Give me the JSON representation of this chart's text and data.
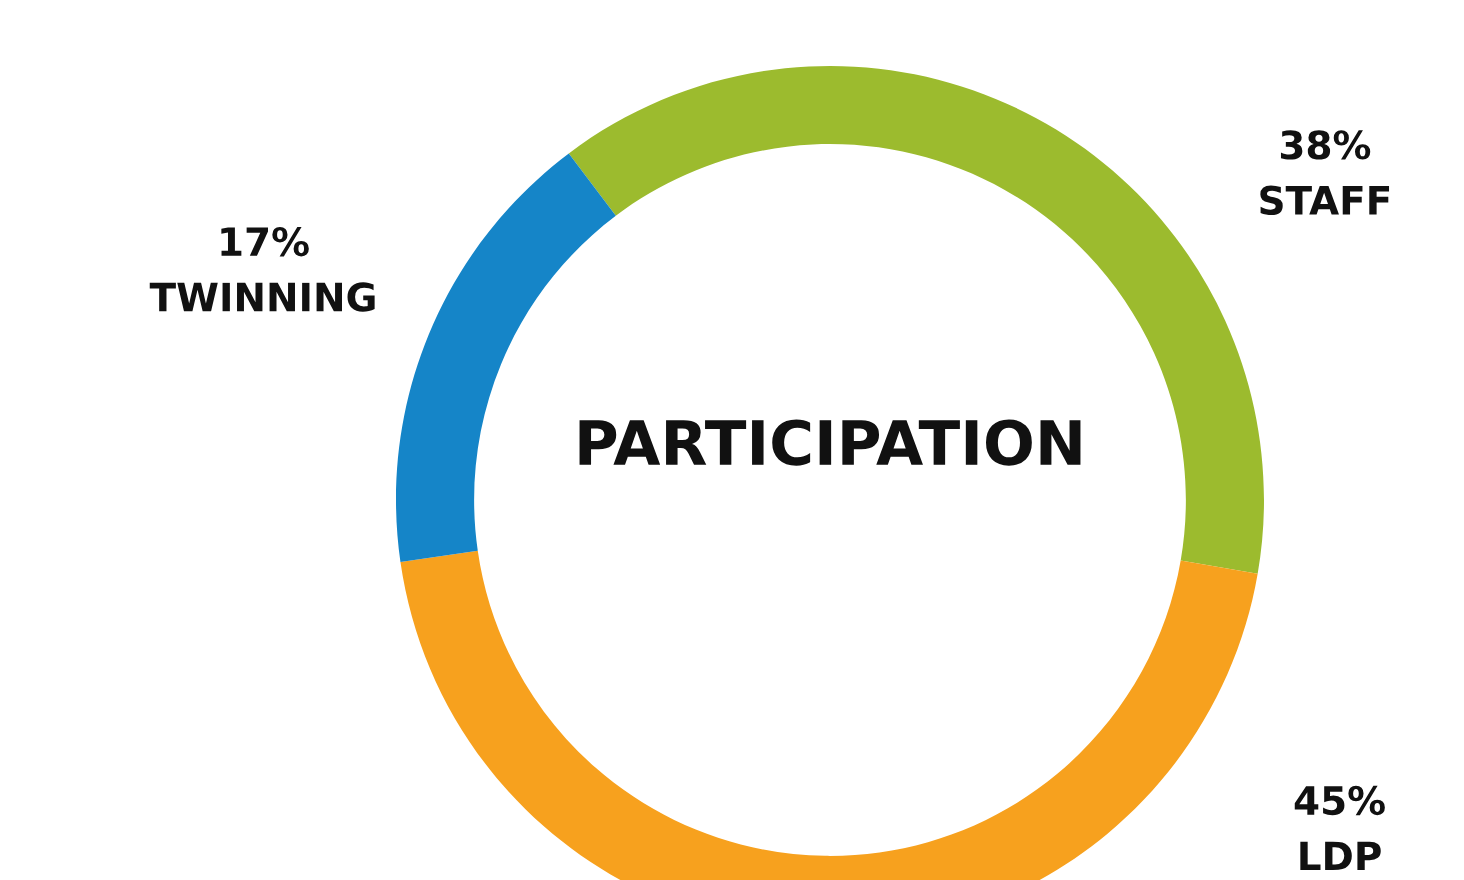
{
  "chart_data": {
    "type": "donut",
    "title": "PARTICIPATION",
    "categories": [
      "STAFF",
      "LDP",
      "TWINNING"
    ],
    "values": [
      38,
      45,
      17
    ],
    "colors": [
      "#9cbb2e",
      "#f7a11e",
      "#1585c8"
    ],
    "value_labels": [
      "38%",
      "45%",
      "17%"
    ],
    "legend": false
  }
}
